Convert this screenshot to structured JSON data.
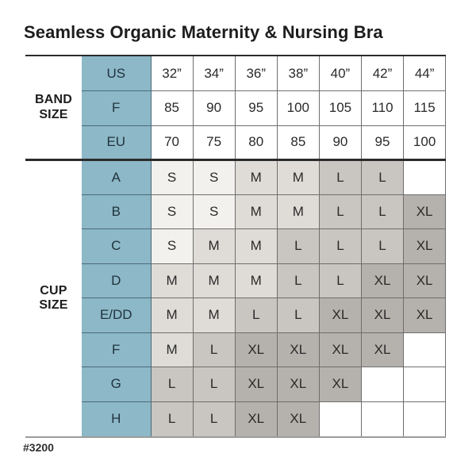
{
  "title": "Seamless Organic Maternity & Nursing Bra",
  "footer_code": "#3200",
  "chart_data": {
    "type": "table",
    "title": "Seamless Organic Maternity & Nursing Bra",
    "product_code": "#3200",
    "columns": [
      "32”",
      "34”",
      "36”",
      "38”",
      "40”",
      "42”",
      "44”"
    ],
    "sections": [
      {
        "id": "band-size",
        "label": "BAND SIZE",
        "rows": [
          {
            "label": "US",
            "values": [
              "32”",
              "34”",
              "36”",
              "38”",
              "40”",
              "42”",
              "44”"
            ]
          },
          {
            "label": "F",
            "values": [
              "85",
              "90",
              "95",
              "100",
              "105",
              "110",
              "115"
            ]
          },
          {
            "label": "EU",
            "values": [
              "70",
              "75",
              "80",
              "85",
              "90",
              "95",
              "100"
            ]
          }
        ]
      },
      {
        "id": "cup-size",
        "label": "CUP SIZE",
        "rows": [
          {
            "label": "A",
            "values": [
              "S",
              "S",
              "M",
              "M",
              "L",
              "L",
              ""
            ]
          },
          {
            "label": "B",
            "values": [
              "S",
              "S",
              "M",
              "M",
              "L",
              "L",
              "XL"
            ]
          },
          {
            "label": "C",
            "values": [
              "S",
              "M",
              "M",
              "L",
              "L",
              "L",
              "XL"
            ]
          },
          {
            "label": "D",
            "values": [
              "M",
              "M",
              "M",
              "L",
              "L",
              "XL",
              "XL"
            ]
          },
          {
            "label": "E/DD",
            "values": [
              "M",
              "M",
              "L",
              "L",
              "XL",
              "XL",
              "XL"
            ]
          },
          {
            "label": "F",
            "values": [
              "M",
              "L",
              "XL",
              "XL",
              "XL",
              "XL",
              ""
            ]
          },
          {
            "label": "G",
            "values": [
              "L",
              "L",
              "XL",
              "XL",
              "XL",
              "",
              ""
            ]
          },
          {
            "label": "H",
            "values": [
              "L",
              "L",
              "XL",
              "XL",
              "",
              "",
              ""
            ]
          }
        ]
      }
    ],
    "colors": {
      "header_blue": "#8cb8c7",
      "size_S": "#f2f1ee",
      "size_M": "#dfdcd7",
      "size_L": "#c9c5c0",
      "size_XL": "#b5b1ac",
      "empty": "#ffffff"
    }
  }
}
